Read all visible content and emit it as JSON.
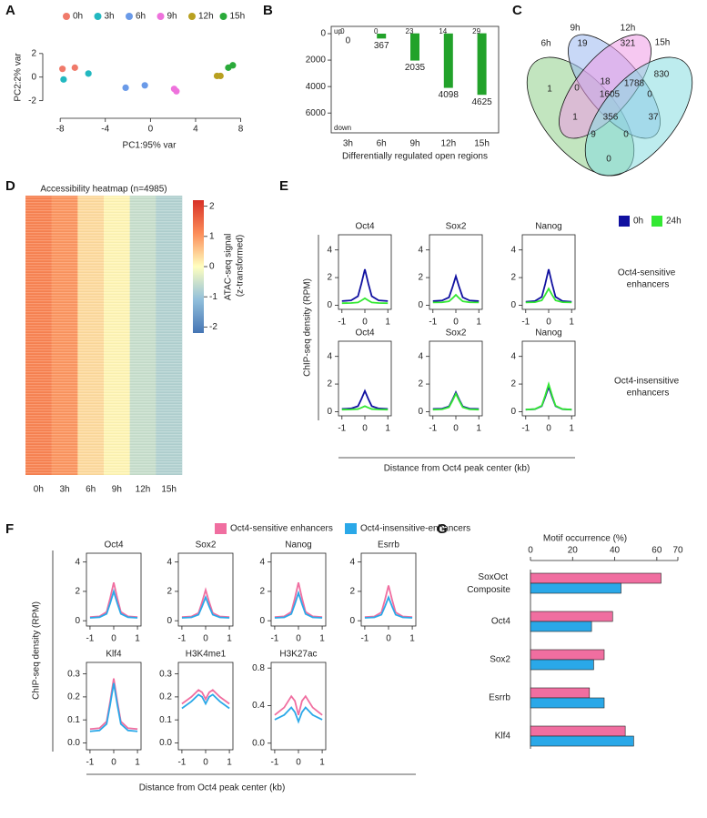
{
  "chart_data": [
    {
      "panel": "A",
      "type": "scatter",
      "xlabel": "PC1:95% var",
      "ylabel": "PC2:2% var",
      "xlim": [
        -8.9,
        8.6
      ],
      "ylim": [
        -2.8,
        3.3
      ],
      "xticks": [
        -8,
        -4,
        0,
        4,
        8
      ],
      "yticks": [
        -2,
        0,
        2
      ],
      "legend": "top",
      "series": [
        {
          "name": "0h",
          "color": "#f07a6a",
          "x": [
            -7.8,
            -6.7
          ],
          "values": [
            0.7,
            0.8
          ]
        },
        {
          "name": "3h",
          "color": "#22b8c0",
          "x": [
            -7.7,
            -5.5
          ],
          "values": [
            -0.2,
            0.3
          ]
        },
        {
          "name": "6h",
          "color": "#6a9ae8",
          "x": [
            -2.2,
            -0.5
          ],
          "values": [
            -0.9,
            -0.7
          ]
        },
        {
          "name": "9h",
          "color": "#ee72dc",
          "x": [
            2.1,
            2.3
          ],
          "values": [
            -1.0,
            -1.2
          ]
        },
        {
          "name": "12h",
          "color": "#b8a020",
          "x": [
            5.9,
            6.2
          ],
          "values": [
            0.1,
            0.1
          ]
        },
        {
          "name": "15h",
          "color": "#2aaa3a",
          "x": [
            6.9,
            7.3
          ],
          "values": [
            0.8,
            1.0
          ]
        }
      ]
    },
    {
      "panel": "B",
      "type": "diverging_bar",
      "xlabel": "Differentially regulated open regions",
      "categories": [
        "3h",
        "6h",
        "9h",
        "12h",
        "15h"
      ],
      "ylim": [
        -550,
        7500
      ],
      "y_inverted": true,
      "yticks": [
        0,
        2000,
        4000,
        6000
      ],
      "color": "#22a22a",
      "series": [
        {
          "name": "up",
          "values": [
            0,
            0,
            23,
            14,
            29
          ]
        },
        {
          "name": "down",
          "values": [
            0,
            367,
            2035,
            4098,
            4625
          ]
        }
      ]
    },
    {
      "panel": "C",
      "type": "venn",
      "sets": [
        {
          "name": "6h",
          "color": "#8fd08a"
        },
        {
          "name": "9h",
          "color": "#9ab8f0"
        },
        {
          "name": "12h",
          "color": "#ef9be6"
        },
        {
          "name": "15h",
          "color": "#86dde0"
        }
      ],
      "values": [
        1,
        19,
        321,
        830,
        0,
        18,
        1788,
        1605,
        0,
        1,
        356,
        37,
        9,
        0,
        0
      ]
    },
    {
      "panel": "D",
      "type": "heatmap",
      "title": "Accessibility heatmap (n=4985)",
      "categories": [
        "0h",
        "3h",
        "6h",
        "9h",
        "12h",
        "15h"
      ],
      "values": [
        1.2,
        1.0,
        0.35,
        0.1,
        -0.55,
        -0.75
      ],
      "zlim": [
        -2.2,
        2.2
      ],
      "zticks": [
        -2,
        -1,
        0,
        1,
        2
      ],
      "colorbar_label": "ATAC-seq signal (z-transformed)",
      "colormap": [
        "#4575b4",
        "#91bfdb",
        "#ffffbf",
        "#fc8d59",
        "#d73027"
      ]
    },
    {
      "panel": "E",
      "type": "line_grid",
      "ylabel": "ChIP-seq density (RPM)",
      "xlabel": "Distance from Oct4 peak center (kb)",
      "series": [
        {
          "name": "0h",
          "color": "#1010a0"
        },
        {
          "name": "24h",
          "color": "#33e833"
        }
      ],
      "row_labels": [
        "Oct4-sensitive enhancers",
        "Oct4-insensitive enhancers"
      ],
      "x": [
        -1,
        -0.6,
        -0.3,
        -0.15,
        0,
        0.15,
        0.3,
        0.6,
        1
      ],
      "xlim": [
        -1.15,
        1.15
      ],
      "xticks": [
        -1,
        0,
        1
      ],
      "ylim": [
        -0.3,
        5.1
      ],
      "yticks": [
        0,
        2,
        4
      ],
      "panels": [
        {
          "title": "Oct4",
          "values": [
            [
              0.3,
              0.35,
              0.65,
              1.57,
              2.6,
              1.57,
              0.65,
              0.35,
              0.3
            ],
            [
              0.15,
              0.16,
              0.2,
              0.34,
              0.5,
              0.34,
              0.2,
              0.16,
              0.15
            ]
          ]
        },
        {
          "title": "Sox2",
          "values": [
            [
              0.3,
              0.34,
              0.57,
              1.29,
              2.1,
              1.29,
              0.57,
              0.34,
              0.3
            ],
            [
              0.2,
              0.21,
              0.28,
              0.5,
              0.75,
              0.5,
              0.28,
              0.21,
              0.2
            ]
          ]
        },
        {
          "title": "Nanog",
          "values": [
            [
              0.25,
              0.3,
              0.6,
              1.54,
              2.6,
              1.54,
              0.6,
              0.3,
              0.25
            ],
            [
              0.2,
              0.22,
              0.35,
              0.75,
              1.2,
              0.75,
              0.35,
              0.22,
              0.2
            ]
          ]
        },
        {
          "title": "Oct4",
          "values": [
            [
              0.2,
              0.23,
              0.4,
              0.92,
              1.5,
              0.92,
              0.4,
              0.23,
              0.2
            ],
            [
              0.15,
              0.16,
              0.19,
              0.29,
              0.4,
              0.29,
              0.19,
              0.16,
              0.15
            ]
          ]
        },
        {
          "title": "Sox2",
          "values": [
            [
              0.2,
              0.22,
              0.38,
              0.86,
              1.4,
              0.86,
              0.38,
              0.22,
              0.2
            ],
            [
              0.15,
              0.17,
              0.32,
              0.78,
              1.3,
              0.78,
              0.32,
              0.17,
              0.15
            ]
          ]
        },
        {
          "title": "Nanog",
          "values": [
            [
              0.15,
              0.18,
              0.4,
              1.06,
              1.8,
              1.06,
              0.4,
              0.18,
              0.15
            ],
            [
              0.15,
              0.19,
              0.43,
              1.17,
              2.0,
              1.17,
              0.43,
              0.19,
              0.15
            ]
          ]
        }
      ]
    },
    {
      "panel": "F",
      "type": "line_grid",
      "ylabel": "ChIP-seq density (RPM)",
      "xlabel": "Distance from Oct4 peak center (kb)",
      "series": [
        {
          "name": "Oct4-sensitive enhancers",
          "color": "#f06ea0"
        },
        {
          "name": "Oct4-insensitive-enhancers",
          "color": "#2aa8e8"
        }
      ],
      "x": [
        -1,
        -0.6,
        -0.3,
        -0.15,
        0,
        0.15,
        0.3,
        0.6,
        1
      ],
      "xlim": [
        -1.15,
        1.15
      ],
      "xticks": [
        -1,
        0,
        1
      ],
      "panels": [
        {
          "title": "Oct4",
          "ylim": [
            -0.36,
            4.6
          ],
          "yticks": [
            0,
            2,
            4
          ],
          "values": [
            [
              0.25,
              0.3,
              0.6,
              1.54,
              2.6,
              1.54,
              0.6,
              0.3,
              0.25
            ],
            [
              0.2,
              0.24,
              0.47,
              1.19,
              2.0,
              1.19,
              0.47,
              0.24,
              0.2
            ]
          ]
        },
        {
          "title": "Sox2",
          "ylim": [
            -0.36,
            4.6
          ],
          "yticks": [
            0,
            2,
            4
          ],
          "values": [
            [
              0.25,
              0.29,
              0.53,
              1.27,
              2.1,
              1.27,
              0.53,
              0.29,
              0.25
            ],
            [
              0.2,
              0.23,
              0.41,
              0.97,
              1.6,
              0.97,
              0.41,
              0.23,
              0.2
            ]
          ]
        },
        {
          "title": "Nanog",
          "ylim": [
            -0.36,
            4.6
          ],
          "yticks": [
            0,
            2,
            4
          ],
          "values": [
            [
              0.25,
              0.3,
              0.6,
              1.54,
              2.6,
              1.54,
              0.6,
              0.3,
              0.25
            ],
            [
              0.2,
              0.23,
              0.46,
              1.14,
              1.9,
              1.14,
              0.46,
              0.23,
              0.2
            ]
          ]
        },
        {
          "title": "Esrrb",
          "ylim": [
            -0.36,
            4.6
          ],
          "yticks": [
            0,
            2,
            4
          ],
          "values": [
            [
              0.25,
              0.29,
              0.57,
              1.43,
              2.4,
              1.43,
              0.57,
              0.29,
              0.25
            ],
            [
              0.2,
              0.23,
              0.41,
              0.97,
              1.6,
              0.97,
              0.41,
              0.23,
              0.2
            ]
          ]
        },
        {
          "title": "Klf4",
          "ylim": [
            -0.03,
            0.35
          ],
          "yticks": [
            {
              "value": 0,
              "label": "0.0"
            },
            0.1,
            0.2,
            0.3
          ],
          "values": [
            [
              0.06,
              0.064,
              0.093,
              0.181,
              0.28,
              0.181,
              0.093,
              0.064,
              0.06
            ],
            [
              0.05,
              0.054,
              0.082,
              0.166,
              0.26,
              0.166,
              0.082,
              0.054,
              0.05
            ]
          ]
        },
        {
          "title": "H3K4me1",
          "ylim": [
            -0.03,
            0.35
          ],
          "yticks": [
            {
              "value": 0,
              "label": "0.0"
            },
            0.1,
            0.2,
            0.3
          ],
          "values": [
            [
              0.17,
              0.2,
              0.23,
              0.22,
              0.19,
              0.22,
              0.23,
              0.2,
              0.17
            ],
            [
              0.15,
              0.18,
              0.21,
              0.2,
              0.17,
              0.2,
              0.21,
              0.18,
              0.15
            ]
          ]
        },
        {
          "title": "H3K27ac",
          "ylim": [
            -0.07,
            0.86
          ],
          "yticks": [
            {
              "value": 0,
              "label": "0.0"
            },
            0.4,
            0.8
          ],
          "values": [
            [
              0.3,
              0.38,
              0.5,
              0.45,
              0.3,
              0.45,
              0.5,
              0.38,
              0.3
            ],
            [
              0.25,
              0.3,
              0.38,
              0.33,
              0.23,
              0.33,
              0.38,
              0.3,
              0.25
            ]
          ]
        }
      ]
    },
    {
      "panel": "G",
      "type": "hbar",
      "title": "Motif occurrence (%)",
      "categories": [
        "SoxOct Composite",
        "Oct4",
        "Sox2",
        "Esrrb",
        "Klf4"
      ],
      "xlim": [
        0,
        70
      ],
      "xticks": [
        0,
        20,
        40,
        60,
        70
      ],
      "series": [
        {
          "color": "#f06ea0",
          "values": [
            62,
            39,
            35,
            28,
            45
          ]
        },
        {
          "color": "#2aa8e8",
          "values": [
            43,
            29,
            30,
            35,
            49
          ]
        }
      ]
    }
  ]
}
